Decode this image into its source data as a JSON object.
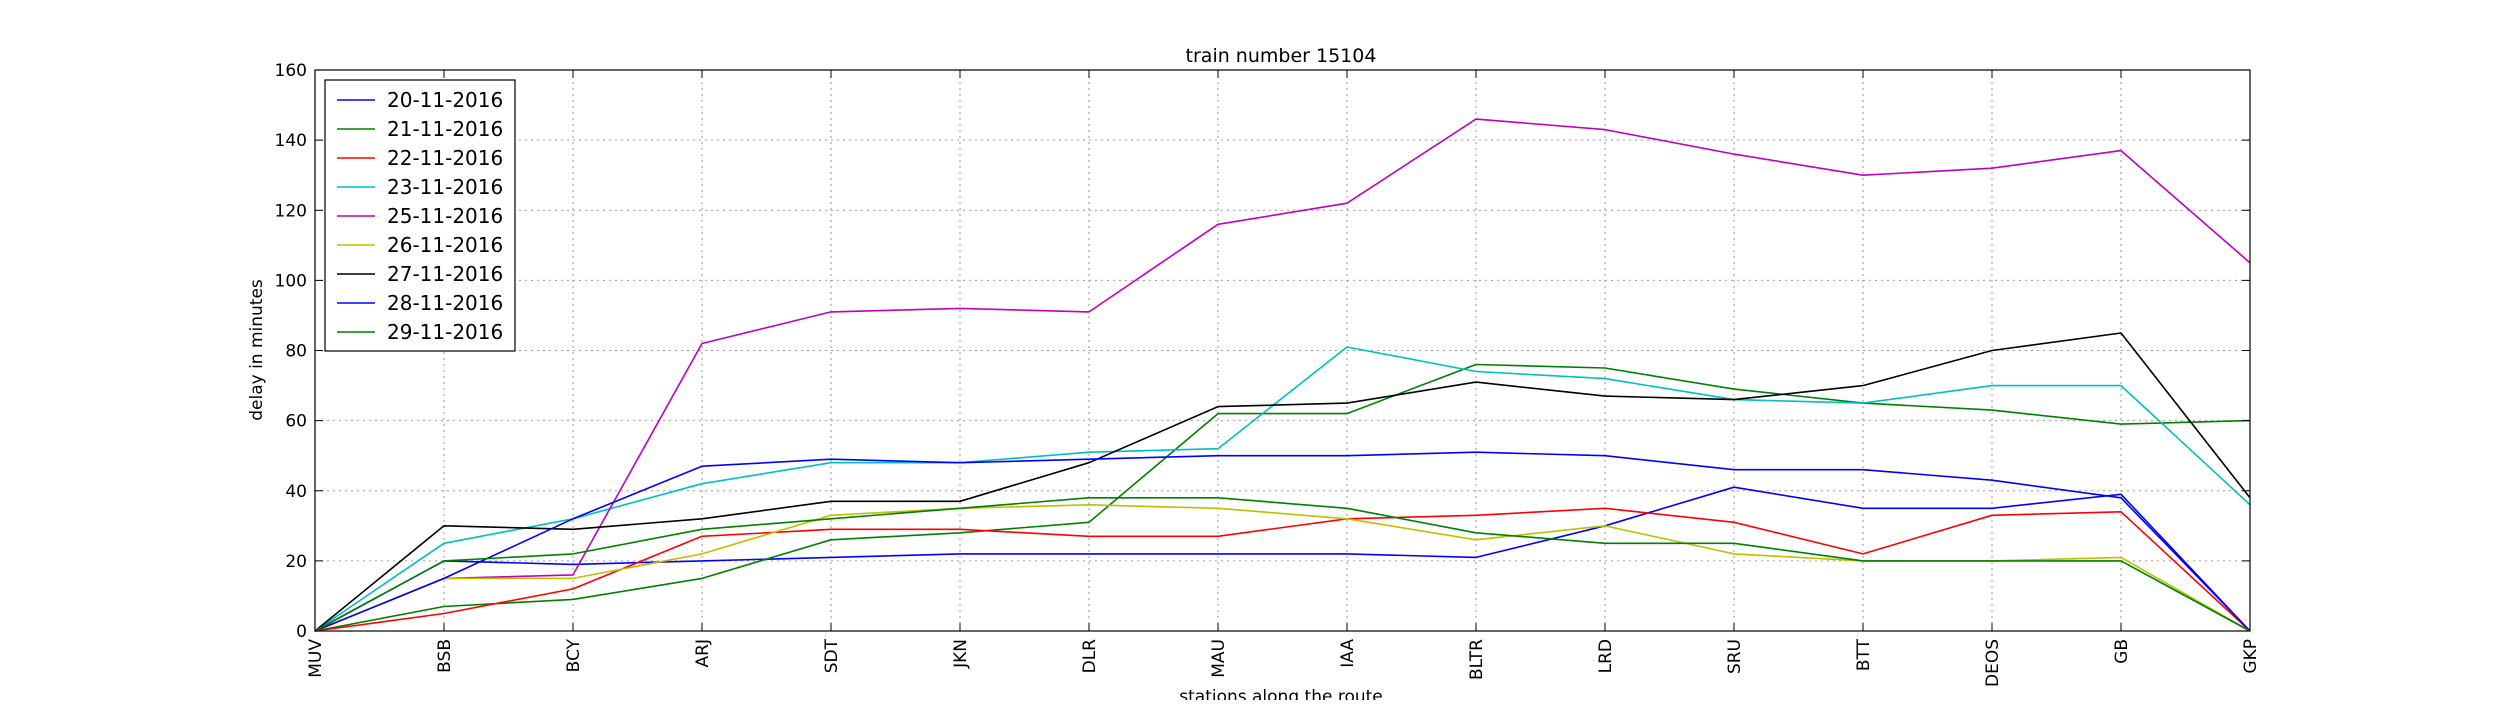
{
  "chart_data": {
    "type": "line",
    "title": "train number 15104",
    "xlabel": "stations along the route",
    "ylabel": "delay in minutes",
    "categories": [
      "MUV",
      "BSB",
      "BCY",
      "ARJ",
      "SDT",
      "JKN",
      "DLR",
      "MAU",
      "IAA",
      "BLTR",
      "LRD",
      "SRU",
      "BTT",
      "DEOS",
      "GB",
      "GKP"
    ],
    "ylim": [
      0,
      160
    ],
    "yticks": [
      0,
      20,
      40,
      60,
      80,
      100,
      120,
      140,
      160
    ],
    "grid": true,
    "legend_position": "top-left",
    "series": [
      {
        "name": "20-11-2016",
        "color": "#0000ff",
        "values": [
          0,
          20,
          19,
          20,
          21,
          22,
          22,
          22,
          22,
          21,
          30,
          41,
          35,
          35,
          39,
          0
        ]
      },
      {
        "name": "21-11-2016",
        "color": "#008000",
        "values": [
          0,
          7,
          9,
          15,
          26,
          28,
          31,
          62,
          62,
          76,
          75,
          69,
          65,
          63,
          59,
          60
        ]
      },
      {
        "name": "22-11-2016",
        "color": "#ff0000",
        "values": [
          0,
          5,
          12,
          27,
          29,
          29,
          27,
          27,
          32,
          33,
          35,
          31,
          22,
          33,
          34,
          0
        ]
      },
      {
        "name": "23-11-2016",
        "color": "#00bfbf",
        "values": [
          0,
          25,
          32,
          42,
          48,
          48,
          51,
          52,
          81,
          74,
          72,
          66,
          65,
          70,
          70,
          36
        ]
      },
      {
        "name": "25-11-2016",
        "color": "#bf00bf",
        "values": [
          0,
          15,
          16,
          82,
          91,
          92,
          91,
          116,
          122,
          146,
          143,
          136,
          130,
          132,
          137,
          105
        ]
      },
      {
        "name": "26-11-2016",
        "color": "#bfbf00",
        "values": [
          0,
          15,
          15,
          22,
          33,
          35,
          36,
          35,
          32,
          26,
          30,
          22,
          20,
          20,
          21,
          0
        ]
      },
      {
        "name": "27-11-2016",
        "color": "#000000",
        "values": [
          0,
          30,
          29,
          32,
          37,
          37,
          48,
          64,
          65,
          71,
          67,
          66,
          70,
          80,
          85,
          38
        ]
      },
      {
        "name": "28-11-2016",
        "color": "#0000ff",
        "values": [
          0,
          15,
          32,
          47,
          49,
          48,
          49,
          50,
          50,
          51,
          50,
          46,
          46,
          43,
          38,
          0
        ]
      },
      {
        "name": "29-11-2016",
        "color": "#008000",
        "values": [
          0,
          20,
          22,
          29,
          32,
          35,
          38,
          38,
          35,
          28,
          25,
          25,
          20,
          20,
          20,
          0
        ]
      }
    ]
  }
}
